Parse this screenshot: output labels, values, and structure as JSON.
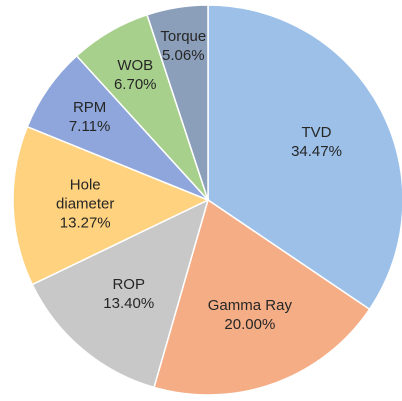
{
  "chart_data": {
    "type": "pie",
    "categories": [
      "TVD",
      "Gamma Ray",
      "ROP",
      "Hole diameter",
      "RPM",
      "WOB",
      "Torque"
    ],
    "values": [
      34.47,
      20.0,
      13.4,
      13.27,
      7.11,
      6.7,
      5.06
    ],
    "value_labels": [
      "34.47%",
      "20.00%",
      "13.40%",
      "13.27%",
      "7.11%",
      "6.70%",
      "5.06%"
    ],
    "colors": [
      "#9cc0e8",
      "#f4ad85",
      "#c8c8c8",
      "#fed27f",
      "#8ea6db",
      "#a8d08d",
      "#8c9fba"
    ]
  }
}
